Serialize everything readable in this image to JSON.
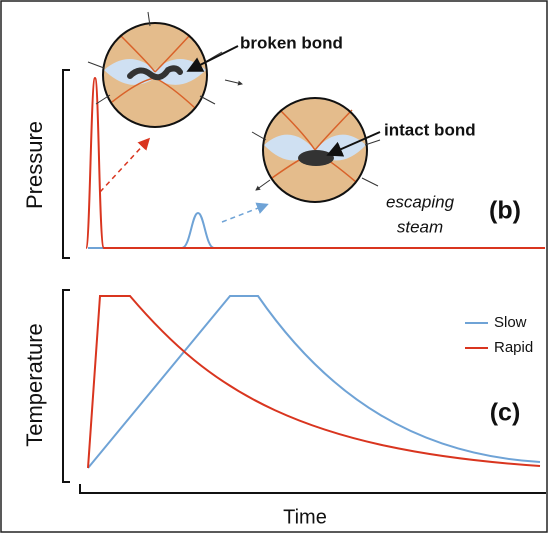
{
  "panels": [
    {
      "label": "(b)",
      "y_label": "Pressure",
      "annotations": {
        "broken": "broken bond",
        "intact": "intact bond",
        "steam": [
          "escaping",
          "steam"
        ]
      }
    },
    {
      "label": "(c)",
      "y_label": "Temperature"
    }
  ],
  "legend": [
    "Slow",
    "Rapid"
  ],
  "x_label": "Time"
}
